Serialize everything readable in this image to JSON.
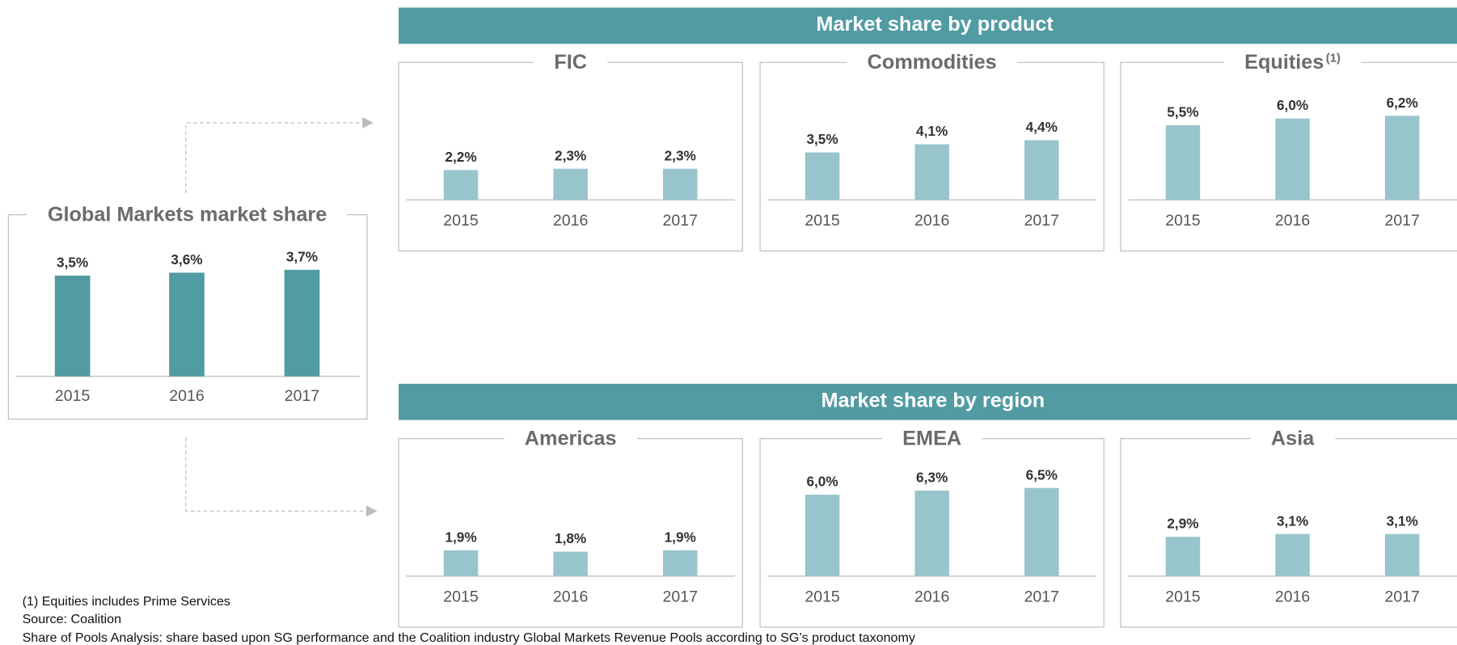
{
  "header_product": "Market share by product",
  "header_region": "Market share by region",
  "chart_data": [
    {
      "type": "bar",
      "title": "Global Markets market share",
      "categories": [
        "2015",
        "2016",
        "2017"
      ],
      "values": [
        3.5,
        3.6,
        3.7
      ],
      "value_labels": [
        "3,5%",
        "3,6%",
        "3,7%"
      ],
      "color": "#519ba3"
    },
    {
      "type": "bar",
      "title": "FIC",
      "categories": [
        "2015",
        "2016",
        "2017"
      ],
      "values": [
        2.2,
        2.3,
        2.3
      ],
      "value_labels": [
        "2,2%",
        "2,3%",
        "2,3%"
      ],
      "color": "#97c5cb"
    },
    {
      "type": "bar",
      "title": "Commodities",
      "categories": [
        "2015",
        "2016",
        "2017"
      ],
      "values": [
        3.5,
        4.1,
        4.4
      ],
      "value_labels": [
        "3,5%",
        "4,1%",
        "4,4%"
      ],
      "color": "#97c5cb"
    },
    {
      "type": "bar",
      "title": "Equities",
      "title_superscript": "(1)",
      "categories": [
        "2015",
        "2016",
        "2017"
      ],
      "values": [
        5.5,
        6.0,
        6.2
      ],
      "value_labels": [
        "5,5%",
        "6,0%",
        "6,2%"
      ],
      "color": "#97c5cb"
    },
    {
      "type": "bar",
      "title": "Americas",
      "categories": [
        "2015",
        "2016",
        "2017"
      ],
      "values": [
        1.9,
        1.8,
        1.9
      ],
      "value_labels": [
        "1,9%",
        "1,8%",
        "1,9%"
      ],
      "color": "#97c5cb"
    },
    {
      "type": "bar",
      "title": "EMEA",
      "categories": [
        "2015",
        "2016",
        "2017"
      ],
      "values": [
        6.0,
        6.3,
        6.5
      ],
      "value_labels": [
        "6,0%",
        "6,3%",
        "6,5%"
      ],
      "color": "#97c5cb"
    },
    {
      "type": "bar",
      "title": "Asia",
      "categories": [
        "2015",
        "2016",
        "2017"
      ],
      "values": [
        2.9,
        3.1,
        3.1
      ],
      "value_labels": [
        "2,9%",
        "3,1%",
        "3,1%"
      ],
      "color": "#97c5cb"
    }
  ],
  "footnotes": [
    "(1) Equities includes Prime Services",
    "Source: Coalition",
    "Share of Pools Analysis: share based upon SG performance and the Coalition industry Global Markets Revenue Pools according to SG’s product taxonomy"
  ]
}
